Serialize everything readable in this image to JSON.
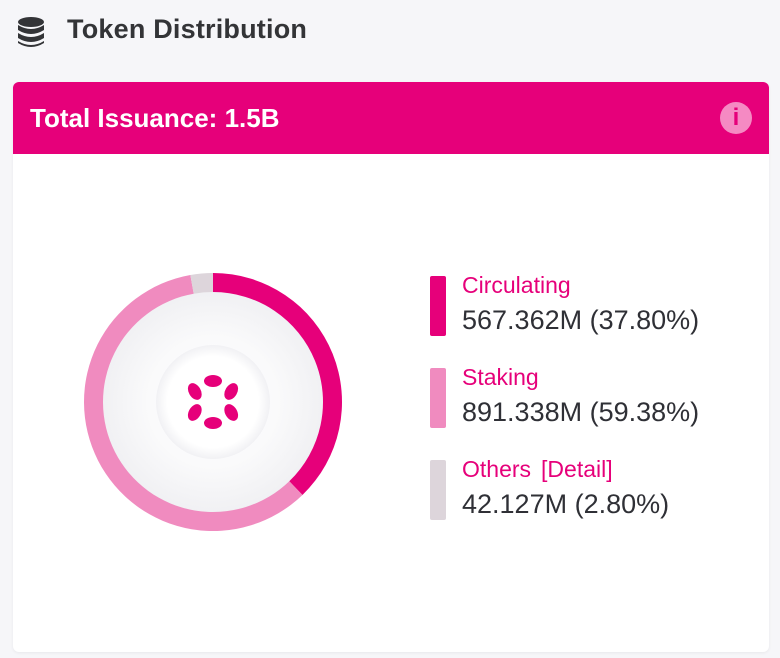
{
  "header": {
    "title": "Token Distribution",
    "icon": "database-icon"
  },
  "card": {
    "title": "Total Issuance: 1.5B",
    "info_icon": "info-icon",
    "center_icon": "polkadot-logo-icon"
  },
  "colors": {
    "accent": "#e6007a",
    "staking": "#f08bbf",
    "others": "#ddd5db"
  },
  "chart_data": {
    "type": "pie",
    "variant": "donut",
    "total_label": "Total Issuance: 1.5B",
    "slices": [
      {
        "name": "Circulating",
        "value_label": "567.362M (37.80%)",
        "value": 567.362,
        "percent": 37.8,
        "color": "#e6007a"
      },
      {
        "name": "Staking",
        "value_label": "891.338M (59.38%)",
        "value": 891.338,
        "percent": 59.38,
        "color": "#f08bbf"
      },
      {
        "name": "Others",
        "value_label": "42.127M (2.80%)",
        "value": 42.127,
        "percent": 2.8,
        "color": "#ddd5db",
        "detail_link": "[Detail]"
      }
    ],
    "legend_position": "right"
  }
}
